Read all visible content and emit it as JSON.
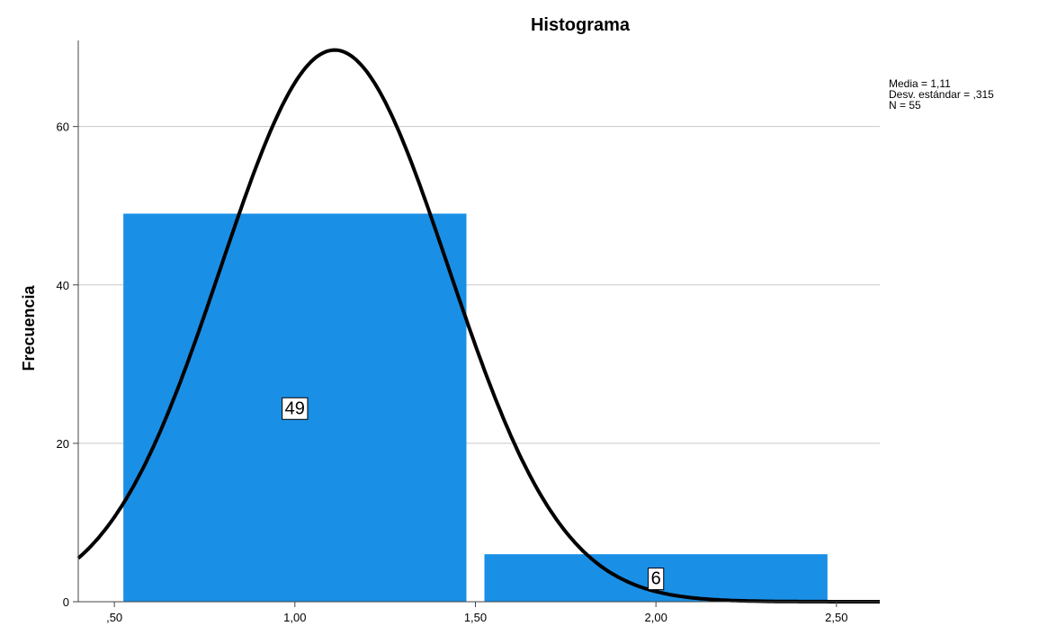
{
  "chart_data": {
    "type": "bar",
    "title": "Histograma",
    "xlabel": "",
    "ylabel": "Frecuencia",
    "xlim": [
      0.4,
      2.62
    ],
    "ylim": [
      0,
      72
    ],
    "x_ticks": [
      {
        "value": 0.5,
        "label": ",50"
      },
      {
        "value": 1.0,
        "label": "1,00"
      },
      {
        "value": 1.5,
        "label": "1,50"
      },
      {
        "value": 2.0,
        "label": "2,00"
      },
      {
        "value": 2.5,
        "label": "2,50"
      }
    ],
    "y_ticks": [
      {
        "value": 0,
        "label": "0"
      },
      {
        "value": 20,
        "label": "20"
      },
      {
        "value": 40,
        "label": "40"
      },
      {
        "value": 60,
        "label": "60"
      }
    ],
    "bins": [
      {
        "x0": 0.5,
        "x1": 1.5,
        "value": 49,
        "label": "49"
      },
      {
        "x0": 1.5,
        "x1": 2.5,
        "value": 6,
        "label": "6"
      }
    ],
    "normal_curve": {
      "mean": 1.11,
      "sd": 0.315,
      "n": 55,
      "bin_width": 1.0
    },
    "grid": {
      "y": true,
      "x": false
    },
    "bar_color": "#1a8fe6",
    "stats": [
      "Media = 1,11",
      "Desv. estándar = ,315",
      "N = 55"
    ]
  }
}
